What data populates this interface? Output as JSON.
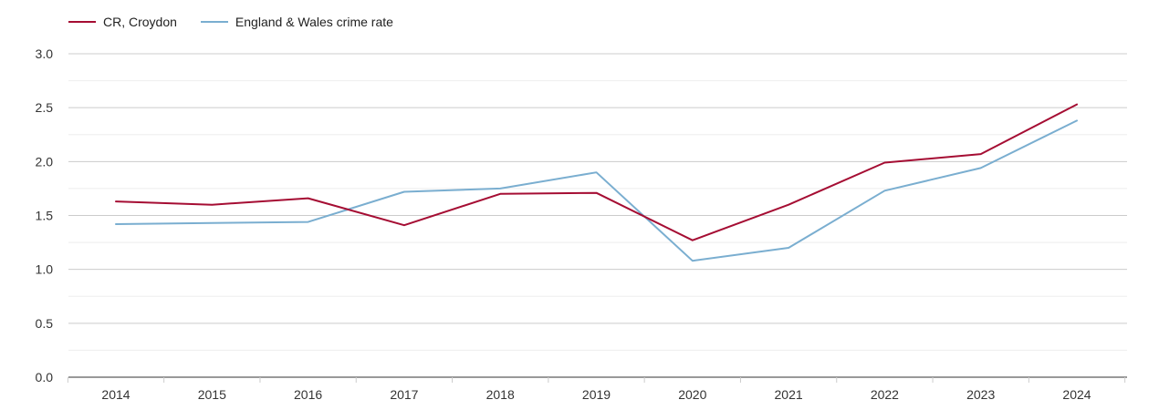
{
  "chart_data": {
    "type": "line",
    "title": "",
    "xlabel": "",
    "ylabel": "",
    "categories": [
      "2014",
      "2015",
      "2016",
      "2017",
      "2018",
      "2019",
      "2020",
      "2021",
      "2022",
      "2023",
      "2024"
    ],
    "ylim": [
      0,
      3
    ],
    "y_ticks": [
      "0.0",
      "0.5",
      "1.0",
      "1.5",
      "2.0",
      "2.5",
      "3.0"
    ],
    "grid": true,
    "legend_position": "top-left",
    "series": [
      {
        "name": "CR, Croydon",
        "color": "#a50d33",
        "values": [
          1.63,
          1.6,
          1.66,
          1.41,
          1.7,
          1.71,
          1.27,
          1.6,
          1.99,
          2.07,
          2.53
        ]
      },
      {
        "name": "England & Wales crime rate",
        "color": "#7aaed0",
        "values": [
          1.42,
          1.43,
          1.44,
          1.72,
          1.75,
          1.9,
          1.08,
          1.2,
          1.73,
          1.94,
          2.38
        ]
      }
    ]
  }
}
